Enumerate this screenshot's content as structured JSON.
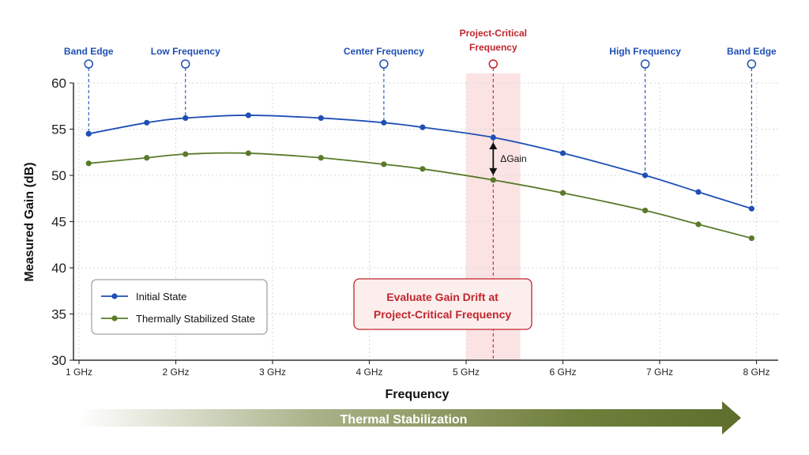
{
  "chart_data": {
    "type": "line",
    "xlabel": "Frequency",
    "ylabel": "Measured Gain (dB)",
    "xlim": [
      1,
      8.2
    ],
    "ylim": [
      30,
      60
    ],
    "x_ticks": [
      1,
      2,
      3,
      4,
      5,
      6,
      7,
      8
    ],
    "x_tick_labels": [
      "1 GHz",
      "2 GHz",
      "3 GHz",
      "4 GHz",
      "5 GHz",
      "6 GHz",
      "7 GHz",
      "8 GHz"
    ],
    "y_ticks": [
      30,
      35,
      40,
      45,
      50,
      55,
      60
    ],
    "y_tick_labels": [
      "30",
      "35",
      "40",
      "45",
      "50",
      "55",
      "60"
    ],
    "grid": true,
    "legend_position": "bottom-left",
    "series": [
      {
        "name": "Initial State",
        "color": "#1f4fb5",
        "x": [
          1.1,
          1.7,
          2.1,
          2.75,
          3.5,
          4.15,
          4.55,
          5.28,
          6.0,
          6.85,
          7.4,
          7.95
        ],
        "y": [
          54.5,
          55.7,
          56.2,
          56.5,
          56.2,
          55.7,
          55.2,
          54.1,
          52.4,
          50.0,
          48.2,
          46.4
        ]
      },
      {
        "name": "Thermally Stabilized State",
        "color": "#5a7a2a",
        "x": [
          1.1,
          1.7,
          2.1,
          2.75,
          3.5,
          4.15,
          4.55,
          5.28,
          6.0,
          6.85,
          7.4,
          7.95
        ],
        "y": [
          51.3,
          51.9,
          52.3,
          52.4,
          51.9,
          51.2,
          50.7,
          49.5,
          48.1,
          46.2,
          44.7,
          43.2
        ]
      }
    ],
    "annotations": {
      "markers": [
        {
          "label": "Band Edge",
          "x": 1.1,
          "series_index": 0,
          "color": "#1f4fb5"
        },
        {
          "label": "Low Frequency",
          "x": 2.1,
          "series_index": 0,
          "color": "#1f4fb5"
        },
        {
          "label": "Center Frequency",
          "x": 4.15,
          "series_index": 0,
          "color": "#1f4fb5"
        },
        {
          "label": "Project-Critical\nFrequency",
          "x": 5.28,
          "series_index": 0,
          "color": "#c0262d"
        },
        {
          "label": "High Frequency",
          "x": 6.85,
          "series_index": 0,
          "color": "#1f4fb5"
        },
        {
          "label": "Band Edge",
          "x": 7.95,
          "series_index": 0,
          "color": "#1f4fb5"
        }
      ],
      "highlight_band": {
        "x_from": 5.0,
        "x_to": 5.56,
        "color": "#fbe3e3"
      },
      "delta_label": "ΔGain",
      "callout": {
        "line1": "Evaluate Gain Drift at",
        "line2": "Project-Critical Frequency",
        "color": "#c0262d"
      },
      "bottom_arrow_label": "Thermal Stabilization"
    }
  }
}
